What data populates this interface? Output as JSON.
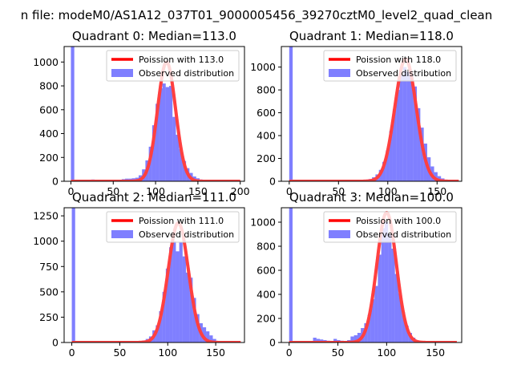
{
  "figure": {
    "suptitle": "n file: modeM0/AS1A12_037T01_9000005456_39270cztM0_level2_quad_clean"
  },
  "colors": {
    "hist": "#0000ff",
    "curve": "#ff0000",
    "axis": "#000000",
    "background": "#ffffff"
  },
  "chart_data": [
    {
      "type": "bar",
      "title": "Quadrant 0: Median=113.0",
      "xlim": [
        -8,
        205
      ],
      "ylim": [
        0,
        1130
      ],
      "xticks": [
        0,
        50,
        100,
        150,
        200
      ],
      "yticks": [
        0,
        200,
        400,
        600,
        800,
        1000
      ],
      "bin_width": 4,
      "bins": [
        [
          0,
          1130
        ],
        [
          20,
          8
        ],
        [
          24,
          15
        ],
        [
          28,
          12
        ],
        [
          32,
          5
        ],
        [
          56,
          5
        ],
        [
          60,
          18
        ],
        [
          64,
          22
        ],
        [
          68,
          22
        ],
        [
          72,
          25
        ],
        [
          76,
          30
        ],
        [
          80,
          50
        ],
        [
          84,
          100
        ],
        [
          88,
          175
        ],
        [
          92,
          290
        ],
        [
          96,
          470
        ],
        [
          100,
          650
        ],
        [
          104,
          780
        ],
        [
          108,
          820
        ],
        [
          112,
          790
        ],
        [
          116,
          800
        ],
        [
          120,
          540
        ],
        [
          124,
          390
        ],
        [
          128,
          270
        ],
        [
          132,
          170
        ],
        [
          136,
          110
        ],
        [
          140,
          70
        ],
        [
          144,
          40
        ],
        [
          148,
          25
        ],
        [
          152,
          15
        ],
        [
          156,
          8
        ],
        [
          160,
          5
        ],
        [
          164,
          3
        ]
      ],
      "curve": {
        "mean": 113.0,
        "peak": 1000,
        "x_range": [
          0,
          200
        ]
      },
      "legend": {
        "location": "upper right",
        "entries": [
          "Poission with 113.0",
          "Observed distribution"
        ]
      }
    },
    {
      "type": "bar",
      "title": "Quadrant 1: Median=118.0",
      "xlim": [
        -8,
        175
      ],
      "ylim": [
        0,
        1180
      ],
      "xticks": [
        0,
        50,
        100,
        150
      ],
      "yticks": [
        0,
        200,
        400,
        600,
        800,
        1000
      ],
      "bin_width": 3.5,
      "bins": [
        [
          0,
          1180
        ],
        [
          70,
          5
        ],
        [
          73.5,
          10
        ],
        [
          77,
          15
        ],
        [
          80.5,
          20
        ],
        [
          84,
          35
        ],
        [
          87.5,
          60
        ],
        [
          91,
          100
        ],
        [
          94.5,
          170
        ],
        [
          98,
          270
        ],
        [
          101.5,
          440
        ],
        [
          105,
          630
        ],
        [
          108.5,
          800
        ],
        [
          112,
          930
        ],
        [
          115.5,
          1000
        ],
        [
          119,
          960
        ],
        [
          122.5,
          930
        ],
        [
          126,
          830
        ],
        [
          129.5,
          640
        ],
        [
          133,
          470
        ],
        [
          136.5,
          330
        ],
        [
          140,
          210
        ],
        [
          143.5,
          130
        ],
        [
          147,
          80
        ],
        [
          150.5,
          45
        ],
        [
          154,
          25
        ],
        [
          157.5,
          12
        ],
        [
          161,
          6
        ]
      ],
      "curve": {
        "mean": 118.0,
        "peak": 1070,
        "x_range": [
          0,
          172
        ]
      },
      "legend": {
        "location": "upper right",
        "entries": [
          "Poission with 118.0",
          "Observed distribution"
        ]
      }
    },
    {
      "type": "bar",
      "title": "Quadrant 2: Median=111.0",
      "xlim": [
        -8,
        180
      ],
      "ylim": [
        0,
        1330
      ],
      "xticks": [
        0,
        50,
        100,
        150
      ],
      "yticks": [
        0,
        250,
        500,
        750,
        1000,
        1250
      ],
      "bin_width": 3.5,
      "bins": [
        [
          0,
          1330
        ],
        [
          70,
          10
        ],
        [
          73.5,
          20
        ],
        [
          77,
          35
        ],
        [
          80.5,
          60
        ],
        [
          84,
          120
        ],
        [
          87.5,
          170
        ],
        [
          91,
          310
        ],
        [
          94.5,
          500
        ],
        [
          98,
          730
        ],
        [
          101.5,
          940
        ],
        [
          105,
          1000
        ],
        [
          108.5,
          900
        ],
        [
          112,
          990
        ],
        [
          115.5,
          850
        ],
        [
          119,
          690
        ],
        [
          122.5,
          640
        ],
        [
          126,
          440
        ],
        [
          129.5,
          280
        ],
        [
          133,
          190
        ],
        [
          136.5,
          150
        ],
        [
          140,
          110
        ],
        [
          143.5,
          70
        ],
        [
          147,
          35
        ],
        [
          150.5,
          12
        ]
      ],
      "curve": {
        "mean": 111.0,
        "peak": 1180,
        "x_range": [
          0,
          176
        ]
      },
      "legend": {
        "location": "upper right",
        "entries": [
          "Poission with 111.0",
          "Observed distribution"
        ]
      }
    },
    {
      "type": "bar",
      "title": "Quadrant 3: Median=100.0",
      "xlim": [
        -8,
        177
      ],
      "ylim": [
        0,
        1120
      ],
      "xticks": [
        0,
        50,
        100,
        150
      ],
      "yticks": [
        0,
        200,
        400,
        600,
        800,
        1000
      ],
      "bin_width": 3.5,
      "bins": [
        [
          0,
          1120
        ],
        [
          10,
          3
        ],
        [
          20,
          10
        ],
        [
          24.5,
          40
        ],
        [
          28,
          30
        ],
        [
          31.5,
          25
        ],
        [
          35,
          20
        ],
        [
          38.5,
          15
        ],
        [
          42,
          10
        ],
        [
          45.5,
          30
        ],
        [
          49,
          20
        ],
        [
          52.5,
          15
        ],
        [
          56,
          10
        ],
        [
          59.5,
          20
        ],
        [
          63,
          50
        ],
        [
          66.5,
          60
        ],
        [
          70,
          80
        ],
        [
          73.5,
          120
        ],
        [
          77,
          160
        ],
        [
          80.5,
          230
        ],
        [
          84,
          360
        ],
        [
          87.5,
          470
        ],
        [
          91,
          730
        ],
        [
          94.5,
          950
        ],
        [
          98,
          1000
        ],
        [
          101.5,
          900
        ],
        [
          105,
          780
        ],
        [
          108.5,
          570
        ],
        [
          112,
          410
        ],
        [
          115.5,
          250
        ],
        [
          119,
          140
        ],
        [
          122.5,
          80
        ],
        [
          126,
          40
        ],
        [
          129.5,
          20
        ],
        [
          133,
          10
        ],
        [
          136.5,
          5
        ]
      ],
      "curve": {
        "mean": 100.0,
        "peak": 1080,
        "x_range": [
          0,
          172
        ]
      },
      "legend": {
        "location": "upper right",
        "entries": [
          "Poission with 100.0",
          "Observed distribution"
        ]
      }
    }
  ]
}
